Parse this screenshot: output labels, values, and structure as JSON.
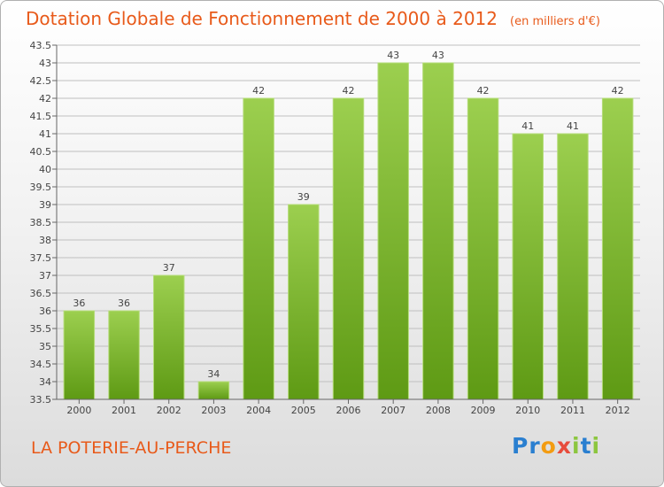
{
  "header": {
    "title": "Dotation Globale de Fonctionnement de 2000 à 2012",
    "unit": "(en milliers d'€)"
  },
  "footer": {
    "commune": "LA POTERIE-AU-PERCHE",
    "brand": "Proxiti",
    "brand_letters": [
      {
        "ch": "P",
        "color": "#2a7fd0"
      },
      {
        "ch": "r",
        "color": "#2a7fd0"
      },
      {
        "ch": "o",
        "color": "#f39c12"
      },
      {
        "ch": "x",
        "color": "#e74c3c"
      },
      {
        "ch": "i",
        "color": "#8cc63f"
      },
      {
        "ch": "t",
        "color": "#2a7fd0"
      },
      {
        "ch": "i",
        "color": "#8cc63f"
      }
    ]
  },
  "colors": {
    "accent": "#e85a1a",
    "bar_top": "#9ccf4f",
    "bar_bottom": "#5e9a14",
    "grid": "#bfbfbf"
  },
  "chart_data": {
    "type": "bar",
    "title": "Dotation Globale de Fonctionnement de 2000 à 2012",
    "subtitle": "(en milliers d'€)",
    "categories": [
      "2000",
      "2001",
      "2002",
      "2003",
      "2004",
      "2005",
      "2006",
      "2007",
      "2008",
      "2009",
      "2010",
      "2011",
      "2012"
    ],
    "values": [
      36,
      36,
      37,
      34,
      42,
      39,
      42,
      43,
      43,
      42,
      41,
      41,
      42
    ],
    "value_labels": [
      "36",
      "36",
      "37",
      "34",
      "42",
      "39",
      "42",
      "43",
      "43",
      "42",
      "41",
      "41",
      "42"
    ],
    "ylim": [
      33.5,
      43.5
    ],
    "yticks": [
      33.5,
      34,
      34.5,
      35,
      35.5,
      36,
      36.5,
      37,
      37.5,
      38,
      38.5,
      39,
      39.5,
      40,
      40.5,
      41,
      41.5,
      42,
      42.5,
      43,
      43.5
    ],
    "grid": true,
    "xlabel": "",
    "ylabel": ""
  }
}
